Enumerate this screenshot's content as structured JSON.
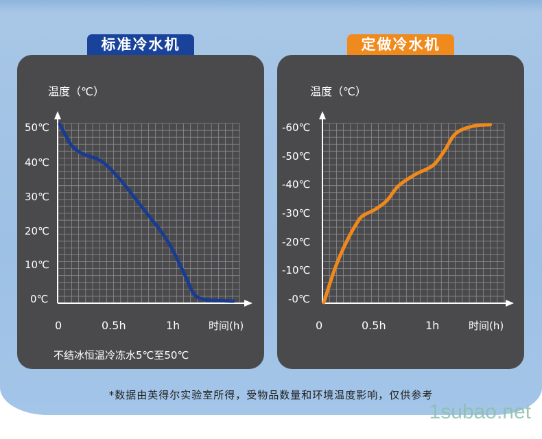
{
  "chart_data": [
    {
      "type": "line",
      "title": "标准冷水机",
      "ylabel": "温度（℃）",
      "xlabel": "时间(h)",
      "x_tick_labels": [
        "0",
        "0.5h",
        "1h",
        "时间(h)"
      ],
      "y_tick_labels": [
        "50℃",
        "40℃",
        "30℃",
        "20℃",
        "10℃",
        "0℃"
      ],
      "xlim": [
        0,
        1.5
      ],
      "ylim": [
        0,
        50
      ],
      "series": [
        {
          "color": "#1a3c8f",
          "x": [
            0,
            0.1,
            0.2,
            0.35,
            0.5,
            0.7,
            0.9,
            1.05,
            1.12,
            1.2,
            1.3,
            1.45
          ],
          "y": [
            50,
            44,
            41.5,
            39.5,
            34.5,
            26,
            17,
            7,
            2,
            0.5,
            0.2,
            0
          ]
        }
      ],
      "caption": "不结冰恒温冷冻水5℃至50℃"
    },
    {
      "type": "line",
      "title": "定做冷水机",
      "ylabel": "温度（℃）",
      "xlabel": "时间(h)",
      "x_tick_labels": [
        "0",
        "0.5h",
        "1h",
        "时间(h)"
      ],
      "y_tick_labels": [
        "-60℃",
        "-50℃",
        "-40℃",
        "-30℃",
        "-20℃",
        "-10℃",
        "-0℃"
      ],
      "xlim": [
        0,
        1.5
      ],
      "ylim": [
        0,
        -60
      ],
      "series": [
        {
          "color": "#f0891b",
          "x": [
            0,
            0.1,
            0.2,
            0.3,
            0.35,
            0.45,
            0.55,
            0.65,
            0.8,
            0.95,
            1.05,
            1.15,
            1.3,
            1.45
          ],
          "y": [
            0,
            -12,
            -21,
            -28,
            -30,
            -32,
            -35,
            -40,
            -44,
            -47,
            -52,
            -58,
            -60.5,
            -61
          ]
        }
      ]
    }
  ],
  "colors": {
    "background_band": "#9dc0e5",
    "panel": "#4a4a4c",
    "left_tab": "#19439a",
    "right_tab": "#f08a1c"
  },
  "footnote": "*数据由英得尔实验室所得，受物品数量和环境温度影响，仅供参考",
  "watermark": "1subao.net"
}
